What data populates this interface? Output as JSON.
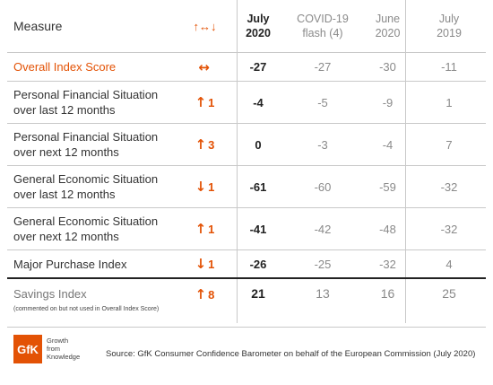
{
  "header": {
    "measure": "Measure",
    "trend_icon": "↑↔↓",
    "columns": [
      {
        "line1": "July",
        "line2": "2020"
      },
      {
        "line1": "COVID-19",
        "line2": "flash (4)"
      },
      {
        "line1": "June",
        "line2": "2020"
      },
      {
        "line1": "July",
        "line2": "2019"
      }
    ]
  },
  "rows": [
    {
      "l1": "Overall Index Score",
      "l2": "",
      "trend": "↔",
      "change": "",
      "v": [
        "-27",
        "-27",
        "-30",
        "-11"
      ]
    },
    {
      "l1": "Personal Financial Situation",
      "l2": "over last 12 months",
      "trend": "↑",
      "change": "1",
      "v": [
        "-4",
        "-5",
        "-9",
        "1"
      ]
    },
    {
      "l1": "Personal Financial Situation",
      "l2": "over next 12 months",
      "trend": "↑",
      "change": "3",
      "v": [
        "0",
        "-3",
        "-4",
        "7"
      ]
    },
    {
      "l1": "General Economic Situation",
      "l2": "over last 12 months",
      "trend": "↓",
      "change": "1",
      "v": [
        "-61",
        "-60",
        "-59",
        "-32"
      ]
    },
    {
      "l1": "General Economic Situation",
      "l2": "over next 12 months",
      "trend": "↑",
      "change": "1",
      "v": [
        "-41",
        "-42",
        "-48",
        "-32"
      ]
    },
    {
      "l1": "Major Purchase Index",
      "l2": "",
      "trend": "↓",
      "change": "1",
      "v": [
        "-26",
        "-25",
        "-32",
        "4"
      ]
    },
    {
      "l1": "Savings Index",
      "l2": "(commented on but not used in Overall Index Score)",
      "trend": "↑",
      "change": "8",
      "v": [
        "21",
        "13",
        "16",
        "25"
      ]
    }
  ],
  "chart_data": {
    "type": "table",
    "columns": [
      "Measure",
      "July 2020",
      "COVID-19 flash (4)",
      "June 2020",
      "July 2019"
    ],
    "rows": [
      {
        "measure": "Overall Index Score",
        "change": "↔",
        "values": [
          -27,
          -27,
          -30,
          -11
        ]
      },
      {
        "measure": "Personal Financial Situation over last 12 months",
        "change": "↑1",
        "values": [
          -4,
          -5,
          -9,
          1
        ]
      },
      {
        "measure": "Personal Financial Situation over next 12 months",
        "change": "↑3",
        "values": [
          0,
          -3,
          -4,
          7
        ]
      },
      {
        "measure": "General Economic Situation over last 12 months",
        "change": "↓1",
        "values": [
          -61,
          -60,
          -59,
          -32
        ]
      },
      {
        "measure": "General Economic Situation over next 12 months",
        "change": "↑1",
        "values": [
          -41,
          -42,
          -48,
          -32
        ]
      },
      {
        "measure": "Major Purchase Index",
        "change": "↓1",
        "values": [
          -26,
          -25,
          -32,
          4
        ]
      },
      {
        "measure": "Savings Index",
        "change": "↑8",
        "values": [
          21,
          13,
          16,
          25
        ]
      }
    ]
  },
  "footer": {
    "logo": "GfK",
    "logo_tag": [
      "Growth",
      "from",
      "Knowledge"
    ],
    "source": "Source: GfK Consumer Confidence Barometer on behalf of the European Commission (July 2020)"
  },
  "colors": {
    "accent": "#e35205",
    "text": "#333333",
    "muted": "#8a8a8a",
    "rule": "#c9c9c9"
  }
}
